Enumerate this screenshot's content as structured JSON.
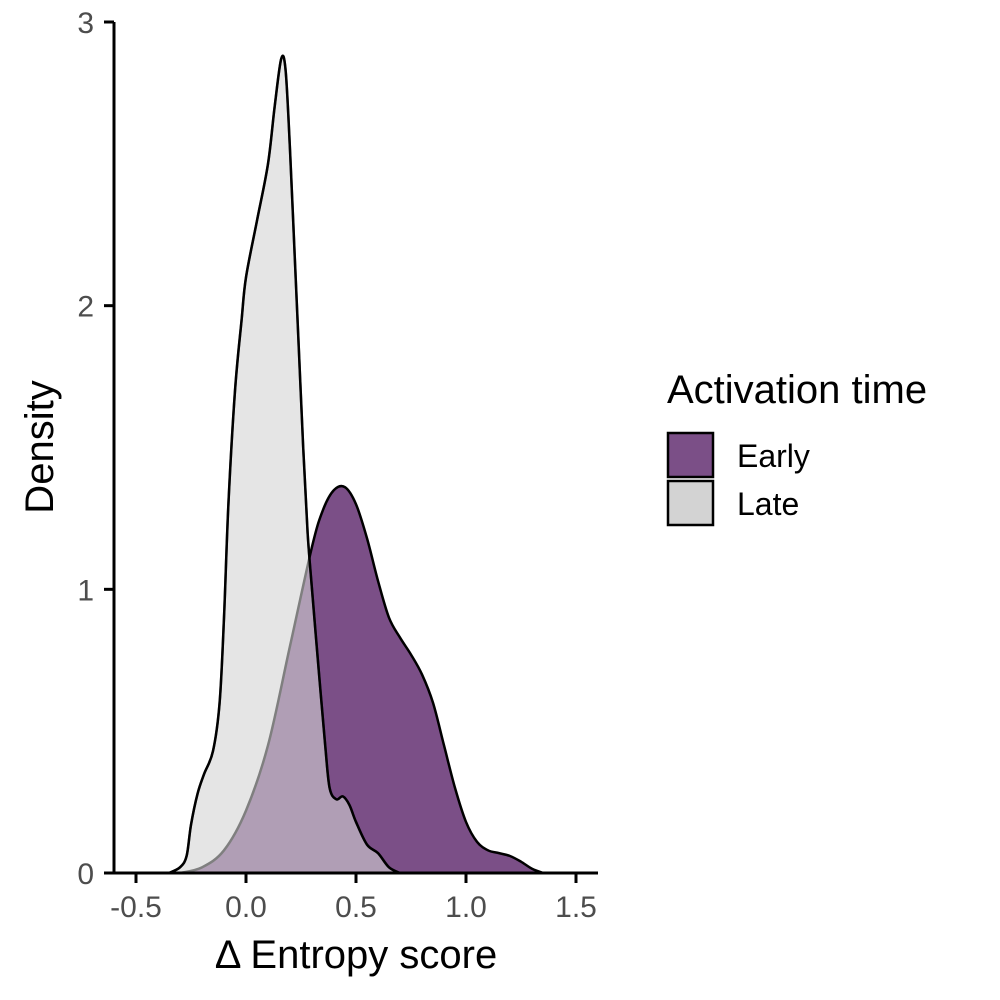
{
  "chart_data": {
    "type": "area",
    "xlabel": "Δ Entropy score",
    "ylabel": "Density",
    "xlim": [
      -0.6,
      1.6
    ],
    "ylim": [
      0,
      3
    ],
    "x_ticks": [
      -0.5,
      0.0,
      0.5,
      1.0,
      1.5
    ],
    "x_tick_labels": [
      "-0.5",
      "0.0",
      "0.5",
      "1.0",
      "1.5"
    ],
    "y_ticks": [
      0,
      1,
      2,
      3
    ],
    "y_tick_labels": [
      "0",
      "1",
      "2",
      "3"
    ],
    "grid": false,
    "legend": {
      "title": "Activation time",
      "placement": "right",
      "entries": [
        {
          "label": "Early",
          "color": "#7b4f87"
        },
        {
          "label": "Late",
          "color": "#d3d3d3"
        }
      ]
    },
    "series": [
      {
        "name": "Early",
        "color": "#7b4f87",
        "opacity": 1,
        "points": [
          [
            -0.3,
            0.0
          ],
          [
            -0.2,
            0.02
          ],
          [
            -0.1,
            0.08
          ],
          [
            0.0,
            0.22
          ],
          [
            0.1,
            0.45
          ],
          [
            0.2,
            0.8
          ],
          [
            0.3,
            1.15
          ],
          [
            0.35,
            1.28
          ],
          [
            0.4,
            1.35
          ],
          [
            0.45,
            1.36
          ],
          [
            0.5,
            1.3
          ],
          [
            0.55,
            1.18
          ],
          [
            0.6,
            1.03
          ],
          [
            0.65,
            0.9
          ],
          [
            0.7,
            0.83
          ],
          [
            0.75,
            0.77
          ],
          [
            0.8,
            0.7
          ],
          [
            0.85,
            0.6
          ],
          [
            0.9,
            0.45
          ],
          [
            0.95,
            0.3
          ],
          [
            1.0,
            0.18
          ],
          [
            1.05,
            0.11
          ],
          [
            1.1,
            0.08
          ],
          [
            1.15,
            0.07
          ],
          [
            1.2,
            0.06
          ],
          [
            1.25,
            0.04
          ],
          [
            1.3,
            0.015
          ],
          [
            1.35,
            0.0
          ]
        ]
      },
      {
        "name": "Late",
        "color": "#d3d3d3",
        "opacity": 0.6,
        "points": [
          [
            -0.35,
            0.0
          ],
          [
            -0.3,
            0.02
          ],
          [
            -0.27,
            0.06
          ],
          [
            -0.25,
            0.17
          ],
          [
            -0.22,
            0.28
          ],
          [
            -0.19,
            0.35
          ],
          [
            -0.15,
            0.43
          ],
          [
            -0.12,
            0.6
          ],
          [
            -0.1,
            0.9
          ],
          [
            -0.08,
            1.3
          ],
          [
            -0.05,
            1.7
          ],
          [
            -0.02,
            1.95
          ],
          [
            0.0,
            2.1
          ],
          [
            0.05,
            2.3
          ],
          [
            0.1,
            2.5
          ],
          [
            0.13,
            2.7
          ],
          [
            0.16,
            2.87
          ],
          [
            0.18,
            2.83
          ],
          [
            0.2,
            2.55
          ],
          [
            0.22,
            2.2
          ],
          [
            0.24,
            1.85
          ],
          [
            0.26,
            1.5
          ],
          [
            0.28,
            1.2
          ],
          [
            0.3,
            1.0
          ],
          [
            0.33,
            0.72
          ],
          [
            0.36,
            0.45
          ],
          [
            0.38,
            0.3
          ],
          [
            0.41,
            0.26
          ],
          [
            0.44,
            0.27
          ],
          [
            0.47,
            0.24
          ],
          [
            0.5,
            0.18
          ],
          [
            0.55,
            0.1
          ],
          [
            0.6,
            0.07
          ],
          [
            0.65,
            0.02
          ],
          [
            0.7,
            0.0
          ]
        ]
      }
    ]
  }
}
